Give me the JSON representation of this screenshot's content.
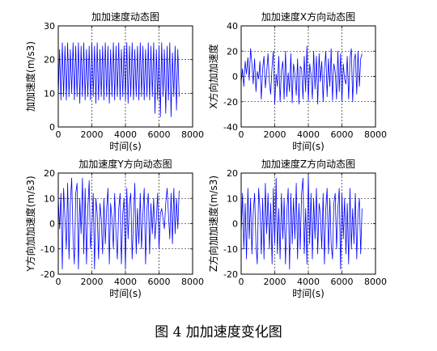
{
  "caption": "图 4  加加速度变化图",
  "chart_data": [
    {
      "type": "line",
      "title": "加加速度动态图",
      "xlabel": "时间(s)",
      "ylabel": "加加速度(m/s3)",
      "xlim": [
        0,
        8000
      ],
      "ylim": [
        0,
        30
      ],
      "xticks": [
        0,
        2000,
        4000,
        6000,
        8000
      ],
      "yticks": [
        0,
        10,
        20,
        30
      ],
      "grid": true,
      "grid_style": "dashed",
      "line_color": "#0000ff",
      "series": [
        {
          "x": [
            0,
            80,
            160,
            240,
            320,
            400,
            480,
            560,
            640,
            720,
            800,
            880,
            960,
            1040,
            1120,
            1200,
            1280,
            1360,
            1440,
            1520,
            1600,
            1680,
            1760,
            1840,
            1920,
            2000,
            2080,
            2160,
            2240,
            2320,
            2400,
            2480,
            2560,
            2640,
            2720,
            2800,
            2880,
            2960,
            3040,
            3120,
            3200,
            3280,
            3360,
            3440,
            3520,
            3600,
            3680,
            3760,
            3840,
            3920,
            4000,
            4080,
            4160,
            4240,
            4320,
            4400,
            4480,
            4560,
            4640,
            4720,
            4800,
            4880,
            4960,
            5040,
            5120,
            5200,
            5280,
            5360,
            5440,
            5520,
            5600,
            5680,
            5760,
            5840,
            5920,
            6000,
            6080,
            6160,
            6240,
            6320,
            6400,
            6480,
            6560,
            6640,
            6720,
            6800,
            6880,
            6960,
            7040,
            7120,
            7200
          ],
          "y": [
            9,
            23,
            8,
            25,
            9,
            24,
            8,
            25,
            9,
            23,
            10,
            25,
            8,
            24,
            9,
            25,
            7,
            24,
            9,
            25,
            8,
            23,
            9,
            24,
            8,
            25,
            9,
            24,
            7,
            25,
            8,
            23,
            9,
            24,
            8,
            25,
            9,
            24,
            7,
            23,
            9,
            25,
            8,
            24,
            9,
            25,
            8,
            23,
            9,
            24,
            8,
            25,
            7,
            24,
            9,
            25,
            8,
            23,
            9,
            24,
            8,
            25,
            9,
            24,
            8,
            23,
            9,
            25,
            8,
            24,
            9,
            25,
            4,
            23,
            8,
            24,
            3,
            25,
            9,
            23,
            4,
            24,
            8,
            25,
            3,
            22,
            9,
            24,
            5,
            23,
            9
          ]
        }
      ]
    },
    {
      "type": "line",
      "title": "加加速度X方向动态图",
      "xlabel": "时间(s)",
      "ylabel": "X方向加加速度",
      "xlim": [
        0,
        8000
      ],
      "ylim": [
        -40,
        40
      ],
      "xticks": [
        0,
        2000,
        4000,
        6000,
        8000
      ],
      "yticks": [
        -40,
        -20,
        0,
        20,
        40
      ],
      "grid": true,
      "grid_style": "dashed",
      "line_color": "#0000ff",
      "series": [
        {
          "x": [
            0,
            80,
            160,
            240,
            320,
            400,
            480,
            560,
            640,
            720,
            800,
            880,
            960,
            1040,
            1120,
            1200,
            1280,
            1360,
            1440,
            1520,
            1600,
            1680,
            1760,
            1840,
            1920,
            2000,
            2080,
            2160,
            2240,
            2320,
            2400,
            2480,
            2560,
            2640,
            2720,
            2800,
            2880,
            2960,
            3040,
            3120,
            3200,
            3280,
            3360,
            3440,
            3520,
            3600,
            3680,
            3760,
            3840,
            3920,
            4000,
            4080,
            4160,
            4240,
            4320,
            4400,
            4480,
            4560,
            4640,
            4720,
            4800,
            4880,
            4960,
            5040,
            5120,
            5200,
            5280,
            5360,
            5440,
            5520,
            5600,
            5680,
            5760,
            5840,
            5920,
            6000,
            6080,
            6160,
            6240,
            6320,
            6400,
            6480,
            6560,
            6640,
            6720,
            6800,
            6880,
            6960,
            7040,
            7120,
            7200
          ],
          "y": [
            -5,
            6,
            -8,
            12,
            2,
            15,
            -3,
            22,
            10,
            -6,
            14,
            -12,
            4,
            -2,
            12,
            -18,
            6,
            16,
            -9,
            3,
            18,
            -5,
            -14,
            8,
            20,
            -22,
            2,
            -8,
            16,
            -20,
            5,
            12,
            -18,
            20,
            -16,
            3,
            -12,
            18,
            -21,
            10,
            2,
            -15,
            14,
            -22,
            8,
            6,
            -18,
            16,
            -12,
            24,
            -20,
            10,
            2,
            -18,
            20,
            -10,
            16,
            -22,
            18,
            -4,
            12,
            -20,
            6,
            20,
            -16,
            14,
            -8,
            22,
            -19,
            10,
            4,
            -18,
            20,
            -12,
            18,
            -20,
            10,
            -2,
            -6,
            16,
            -18,
            14,
            22,
            -20,
            12,
            18,
            -14,
            20,
            -8,
            14,
            18
          ]
        }
      ]
    },
    {
      "type": "line",
      "title": "加加速度Y方向动态图",
      "xlabel": "时间(s)",
      "ylabel": "Y方向加加速度(m/s3)",
      "xlim": [
        0,
        8000
      ],
      "ylim": [
        -20,
        20
      ],
      "xticks": [
        0,
        2000,
        4000,
        6000,
        8000
      ],
      "yticks": [
        -20,
        -10,
        0,
        10,
        20
      ],
      "grid": true,
      "grid_style": "dashed",
      "line_color": "#0000ff",
      "series": [
        {
          "x": [
            0,
            80,
            160,
            240,
            320,
            400,
            480,
            560,
            640,
            720,
            800,
            880,
            960,
            1040,
            1120,
            1200,
            1280,
            1360,
            1440,
            1520,
            1600,
            1680,
            1760,
            1840,
            1920,
            2000,
            2080,
            2160,
            2240,
            2320,
            2400,
            2480,
            2560,
            2640,
            2720,
            2800,
            2880,
            2960,
            3040,
            3120,
            3200,
            3280,
            3360,
            3440,
            3520,
            3600,
            3680,
            3760,
            3840,
            3920,
            4000,
            4080,
            4160,
            4240,
            4320,
            4400,
            4480,
            4560,
            4640,
            4720,
            4800,
            4880,
            4960,
            5040,
            5120,
            5200,
            5280,
            5360,
            5440,
            5520,
            5600,
            5680,
            5760,
            5840,
            5920,
            6000,
            6080,
            6160,
            6240,
            6320,
            6400,
            6480,
            6560,
            6640,
            6720,
            6800,
            6880,
            6960,
            7040,
            7120,
            7200
          ],
          "y": [
            10,
            -2,
            12,
            -18,
            14,
            2,
            -10,
            16,
            -14,
            8,
            18,
            -6,
            -16,
            12,
            16,
            -18,
            10,
            -4,
            18,
            -12,
            14,
            -16,
            6,
            17,
            -10,
            -2,
            12,
            -18,
            10,
            4,
            -14,
            8,
            2,
            -12,
            10,
            -8,
            6,
            14,
            -16,
            8,
            2,
            -10,
            12,
            -4,
            -14,
            6,
            12,
            -16,
            4,
            10,
            -18,
            14,
            -6,
            8,
            12,
            -14,
            2,
            16,
            -12,
            6,
            -8,
            12,
            -10,
            4,
            14,
            -16,
            6,
            12,
            -12,
            8,
            -4,
            10,
            -6,
            2,
            12,
            -10,
            4,
            6,
            2,
            -2,
            8,
            14,
            4,
            -6,
            12,
            -8,
            14,
            -4,
            10,
            -2,
            13
          ]
        }
      ]
    },
    {
      "type": "line",
      "title": "加加速度Z方向动态图",
      "xlabel": "时间(s)",
      "ylabel": "Z方向加加速度(m/s3)",
      "xlim": [
        0,
        8000
      ],
      "ylim": [
        -20,
        20
      ],
      "xticks": [
        0,
        2000,
        4000,
        6000,
        8000
      ],
      "yticks": [
        -20,
        -10,
        0,
        10,
        20
      ],
      "grid": true,
      "grid_style": "dashed",
      "line_color": "#0000ff",
      "series": [
        {
          "x": [
            0,
            80,
            160,
            240,
            320,
            400,
            480,
            560,
            640,
            720,
            800,
            880,
            960,
            1040,
            1120,
            1200,
            1280,
            1360,
            1440,
            1520,
            1600,
            1680,
            1760,
            1840,
            1920,
            2000,
            2080,
            2160,
            2240,
            2320,
            2400,
            2480,
            2560,
            2640,
            2720,
            2800,
            2880,
            2960,
            3040,
            3120,
            3200,
            3280,
            3360,
            3440,
            3520,
            3600,
            3680,
            3760,
            3840,
            3920,
            4000,
            4080,
            4160,
            4240,
            4320,
            4400,
            4480,
            4560,
            4640,
            4720,
            4800,
            4880,
            4960,
            5040,
            5120,
            5200,
            5280,
            5360,
            5440,
            5520,
            5600,
            5680,
            5760,
            5840,
            5920,
            6000,
            6080,
            6160,
            6240,
            6320,
            6400,
            6480,
            6560,
            6640,
            6720,
            6800,
            6880,
            6960,
            7040,
            7120,
            7200
          ],
          "y": [
            -4,
            12,
            -10,
            8,
            -14,
            14,
            -6,
            10,
            -12,
            4,
            12,
            -8,
            -16,
            14,
            6,
            -12,
            10,
            -14,
            16,
            -4,
            12,
            -10,
            8,
            -16,
            14,
            -8,
            18,
            -12,
            6,
            -14,
            12,
            -6,
            10,
            -16,
            4,
            14,
            -18,
            12,
            -8,
            10,
            -6,
            16,
            -14,
            8,
            -10,
            12,
            18,
            -12,
            6,
            -16,
            19,
            -8,
            12,
            -14,
            10,
            -6,
            14,
            -12,
            8,
            4,
            -10,
            12,
            -16,
            6,
            14,
            -12,
            10,
            -8,
            -14,
            8,
            12,
            -10,
            6,
            14,
            -18,
            12,
            -6,
            10,
            -12,
            8,
            -16,
            14,
            -10,
            6,
            -8,
            12,
            -14,
            4,
            10,
            -12,
            6
          ]
        }
      ]
    }
  ]
}
